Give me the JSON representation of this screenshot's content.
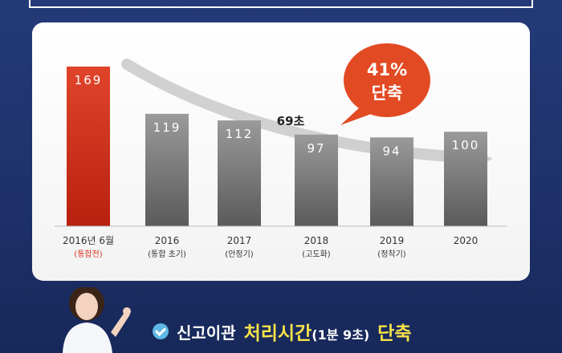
{
  "chart_data": {
    "type": "bar",
    "categories": [
      "2016년 6월",
      "2016",
      "2017",
      "2018",
      "2019",
      "2020"
    ],
    "category_sub": [
      "(통합전)",
      "(통합 초기)",
      "(안정기)",
      "(고도화)",
      "(정착기)",
      ""
    ],
    "values": [
      169,
      119,
      112,
      97,
      94,
      100
    ],
    "value_labels": [
      "169",
      "119",
      "112",
      "97",
      "94",
      "100"
    ],
    "ylim": [
      0,
      180
    ],
    "grid": false,
    "colors": {
      "highlight": "#d9331f",
      "normal": "#8a8a8a",
      "arrow": "#c9c9c9",
      "bubble": "#e24a23"
    },
    "annotations": {
      "arrow_label": "69초",
      "bubble_line1": "41%",
      "bubble_line2": "단축"
    }
  },
  "caption": {
    "part1": "신고이관",
    "part2": "처리시간",
    "part3": "(1분 9초)",
    "part4": "단축"
  },
  "icons": {
    "caption_icon": "check-circle-icon"
  }
}
